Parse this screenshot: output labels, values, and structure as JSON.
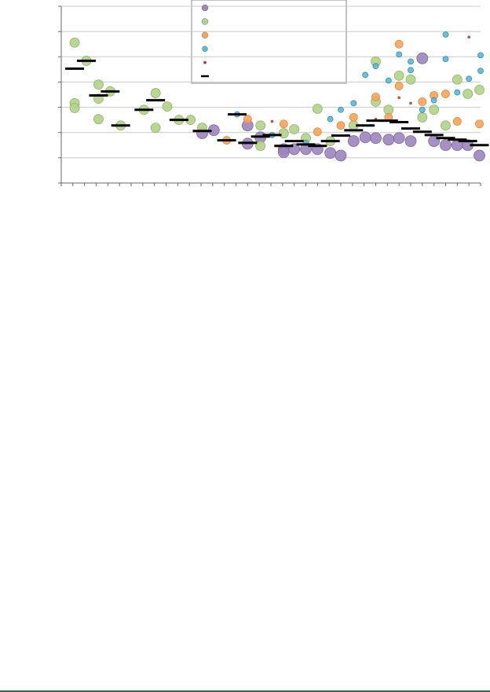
{
  "chart_data": {
    "type": "scatter",
    "xlim": [
      0,
      36
    ],
    "xticks": [
      0,
      1,
      2,
      3,
      4,
      5,
      6,
      7,
      8,
      9,
      10,
      11,
      12,
      13,
      14,
      15,
      16,
      17,
      18,
      19,
      20,
      21,
      22,
      23,
      24,
      25,
      26,
      27,
      28,
      29,
      30,
      31,
      32,
      33,
      34,
      35,
      36
    ],
    "ylim": [
      0,
      7
    ],
    "yticks": [
      0,
      1,
      2,
      3,
      4,
      5,
      6,
      7
    ],
    "grid": true,
    "series": [
      {
        "color": "#9b86bd",
        "x": [
          12.1,
          13.1,
          16.0,
          16.0,
          17.1,
          19.1,
          19.1,
          20.0,
          21.0,
          22.0,
          23.1,
          24.0,
          25.1,
          26.1,
          27.0,
          28.1,
          29.0,
          30.0,
          31.0,
          32.0,
          33.0,
          34.0,
          34.9,
          35.9
        ],
        "values": [
          1.97,
          2.09,
          2.28,
          1.56,
          1.81,
          1.34,
          1.22,
          1.34,
          1.34,
          1.34,
          1.19,
          1.09,
          1.66,
          1.81,
          1.78,
          1.72,
          1.78,
          1.66,
          4.94,
          1.66,
          1.5,
          1.5,
          1.5,
          1.09
        ]
      },
      {
        "color": "#b3d18a",
        "x": [
          1.15,
          1.15,
          1.15,
          2.16,
          3.2,
          3.2,
          3.2,
          4.2,
          5.1,
          7.1,
          8.1,
          8.1,
          9.1,
          10.1,
          11.1,
          12.1,
          17.1,
          20.0,
          22.0,
          27.0,
          29.0,
          30.0,
          34.0,
          34.9,
          35.9,
          17.1,
          19.1,
          21.0,
          23.1,
          25.1,
          27.0,
          28.1,
          31.0,
          32.0,
          33.0
        ],
        "values": [
          5.56,
          3.16,
          2.97,
          4.84,
          3.9,
          3.34,
          2.53,
          3.63,
          2.28,
          2.9,
          3.56,
          2.19,
          3.03,
          2.5,
          2.5,
          2.19,
          1.47,
          2.13,
          2.94,
          4.81,
          4.25,
          4.1,
          4.1,
          3.53,
          3.69,
          2.28,
          1.97,
          1.78,
          1.66,
          2.28,
          3.22,
          2.9,
          2.6,
          2.9,
          2.28
        ]
      },
      {
        "color": "#f7a35c",
        "x": [
          14.2,
          16.0,
          19.1,
          22.0,
          24.0,
          25.1,
          27.0,
          28.1,
          29.0,
          29.0,
          31.0,
          32.0,
          33.0,
          34.0,
          35.9
        ],
        "values": [
          1.69,
          2.53,
          2.34,
          2.03,
          2.28,
          2.6,
          3.41,
          2.6,
          5.5,
          3.84,
          3.22,
          3.47,
          3.53,
          2.44,
          2.34
        ]
      },
      {
        "color": "#5bb8d6",
        "x": [
          15.1,
          18.1,
          21.0,
          23.1,
          24.0,
          25.1,
          26.1,
          27.0,
          28.1,
          29.0,
          30.0,
          30.0,
          31.0,
          32.0,
          33.0,
          33.0,
          34.0,
          35.0,
          36.0,
          36.0
        ],
        "values": [
          2.72,
          1.9,
          1.59,
          2.53,
          2.9,
          3.16,
          4.28,
          4.63,
          4.06,
          5.09,
          4.81,
          4.47,
          2.9,
          3.28,
          5.88,
          4.91,
          3.59,
          4.13,
          5.06,
          4.44
        ]
      },
      {
        "color": "#c0392b",
        "x": [
          18.1,
          27.0,
          29.0,
          30.0,
          35.0
        ],
        "values": [
          2.44,
          2.53,
          3.38,
          3.16,
          5.78
        ]
      },
      {
        "color": "#000000",
        "x": [
          1.15,
          2.16,
          3.2,
          4.2,
          5.1,
          7.1,
          8.1,
          10.1,
          12.1,
          14.2,
          15.1,
          16.0,
          17.1,
          18.1,
          19.1,
          20.0,
          21.0,
          22.0,
          23.1,
          24.0,
          25.1,
          26.1,
          27.0,
          28.1,
          29.0,
          30.0,
          31.0,
          32.0,
          33.0,
          34.0,
          34.9,
          35.9
        ],
        "values": [
          4.53,
          4.84,
          3.47,
          3.63,
          2.28,
          2.9,
          3.28,
          2.5,
          2.06,
          1.69,
          2.72,
          1.59,
          1.84,
          1.9,
          1.47,
          1.66,
          1.53,
          1.47,
          1.66,
          1.88,
          2.09,
          2.28,
          2.47,
          2.47,
          2.41,
          2.16,
          2.03,
          1.9,
          1.78,
          1.72,
          1.66,
          1.5
        ]
      }
    ]
  }
}
